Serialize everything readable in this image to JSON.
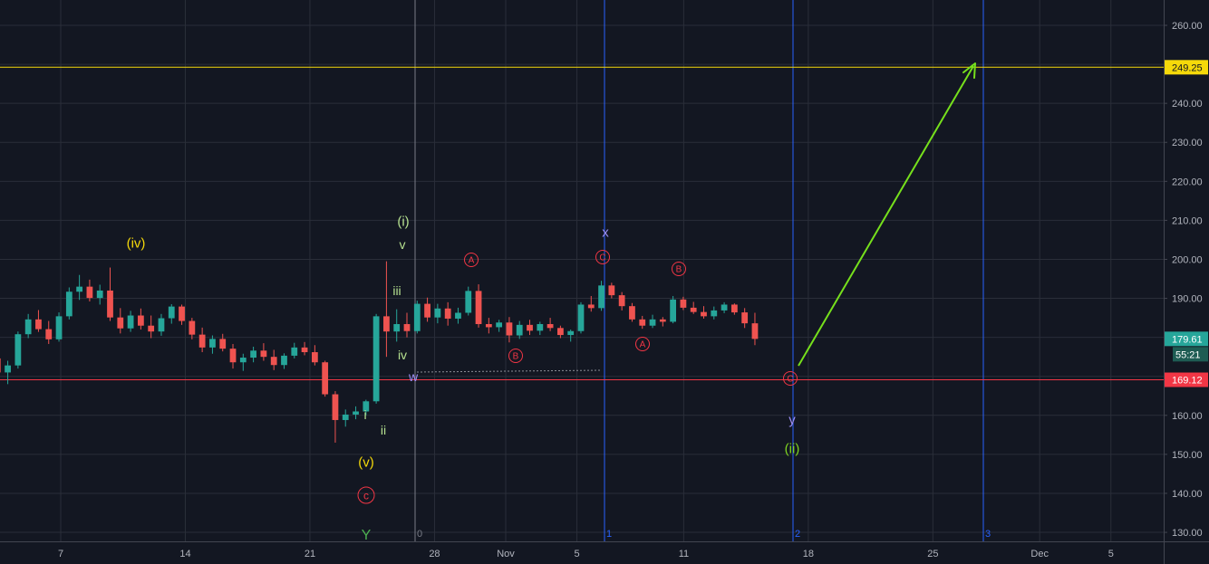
{
  "chart_data": {
    "type": "candlestick",
    "symbol_price_axis": {
      "ylim": [
        126,
        265
      ],
      "ticks": [
        "130.00",
        "140.00",
        "150.00",
        "160.00",
        "170.00",
        "180.00",
        "190.00",
        "200.00",
        "210.00",
        "220.00",
        "230.00",
        "240.00",
        "250.00",
        "260.00"
      ]
    },
    "x_axis": {
      "ticks": [
        {
          "label": "7",
          "day": 7
        },
        {
          "label": "14",
          "day": 14
        },
        {
          "label": "21",
          "day": 21
        },
        {
          "label": "28",
          "day": 28
        },
        {
          "label": "Nov",
          "day": 32
        },
        {
          "label": "5",
          "day": 36
        },
        {
          "label": "11",
          "day": 42
        },
        {
          "label": "18",
          "day": 49
        },
        {
          "label": "25",
          "day": 56
        },
        {
          "label": "Dec",
          "day": 62
        },
        {
          "label": "5",
          "day": 66
        }
      ]
    },
    "horizontal_levels": [
      {
        "label": "249.25",
        "value": 249.25,
        "color": "#f5d90a"
      },
      {
        "label": "169.12",
        "value": 169.12,
        "color": "#f23645"
      }
    ],
    "price_badges": [
      {
        "label": "179.61",
        "value": 179.61,
        "color": "#26a69a"
      }
    ],
    "countdown_label": "55:21",
    "time_cycle_labels": [
      "0",
      "1",
      "2",
      "3"
    ],
    "series": [
      {
        "ohlc_day_start": 0,
        "ohlc_day_end": 46,
        "ohlc": [
          [
            178.0,
            180.2,
            175.5,
            176.5
          ],
          [
            176.5,
            179.5,
            174.8,
            178.2
          ],
          [
            178.2,
            181.6,
            176.9,
            179.8
          ],
          [
            179.8,
            181.0,
            175.3,
            176.0
          ],
          [
            176.0,
            179.0,
            174.2,
            177.6
          ],
          [
            177.6,
            179.4,
            173.8,
            174.6
          ],
          [
            174.6,
            176.2,
            170.0,
            171.0
          ],
          [
            171.0,
            174.0,
            168.0,
            172.8
          ],
          [
            172.8,
            181.5,
            172.0,
            180.8
          ],
          [
            180.8,
            186.0,
            179.8,
            184.6
          ],
          [
            184.6,
            187.0,
            181.4,
            182.1
          ],
          [
            182.1,
            184.2,
            178.3,
            179.5
          ],
          [
            179.5,
            186.4,
            178.9,
            185.4
          ],
          [
            185.4,
            192.8,
            184.6,
            191.7
          ],
          [
            191.7,
            196.0,
            189.6,
            193.0
          ],
          [
            193.0,
            194.8,
            189.2,
            190.1
          ],
          [
            190.1,
            193.5,
            188.4,
            192.0
          ],
          [
            192.0,
            197.9,
            184.2,
            185.1
          ],
          [
            185.1,
            187.5,
            181.0,
            182.3
          ],
          [
            182.3,
            186.8,
            181.4,
            185.6
          ],
          [
            185.6,
            187.4,
            182.0,
            183.0
          ],
          [
            183.0,
            185.6,
            179.8,
            181.5
          ],
          [
            181.5,
            186.0,
            180.4,
            184.9
          ],
          [
            184.9,
            188.5,
            183.5,
            187.9
          ],
          [
            187.9,
            188.4,
            183.2,
            184.2
          ],
          [
            184.2,
            185.0,
            179.5,
            180.7
          ],
          [
            180.7,
            182.5,
            176.2,
            177.4
          ],
          [
            177.4,
            180.5,
            175.8,
            179.6
          ],
          [
            179.6,
            180.9,
            176.4,
            177.1
          ],
          [
            177.1,
            178.3,
            172.0,
            173.6
          ],
          [
            173.6,
            175.8,
            171.4,
            174.8
          ],
          [
            174.8,
            177.6,
            173.6,
            176.6
          ],
          [
            176.6,
            178.5,
            174.0,
            175.0
          ],
          [
            175.0,
            176.8,
            171.6,
            172.9
          ],
          [
            172.9,
            175.9,
            171.9,
            175.3
          ],
          [
            175.3,
            178.6,
            174.6,
            177.4
          ],
          [
            177.4,
            178.8,
            175.4,
            176.2
          ],
          [
            176.2,
            178.0,
            172.8,
            173.6
          ],
          [
            173.6,
            174.0,
            164.8,
            165.4
          ],
          [
            165.4,
            166.2,
            153.0,
            158.8
          ],
          [
            158.8,
            161.5,
            157.1,
            160.2
          ],
          [
            160.2,
            162.3,
            159.0,
            161.0
          ],
          [
            161.0,
            164.0,
            160.0,
            163.6
          ],
          [
            163.6,
            186.0,
            163.0,
            185.4
          ],
          [
            185.4,
            199.5,
            175.0,
            181.5
          ],
          [
            181.5,
            187.2,
            178.9,
            183.4
          ],
          [
            183.4,
            186.3,
            180.0,
            181.6
          ],
          [
            181.6,
            189.4,
            181.0,
            188.6
          ],
          [
            188.6,
            190.2,
            184.0,
            185.1
          ],
          [
            185.1,
            188.6,
            183.6,
            187.4
          ],
          [
            187.4,
            189.0,
            183.0,
            184.8
          ],
          [
            184.8,
            187.6,
            183.5,
            186.3
          ],
          [
            186.3,
            193.0,
            185.6,
            191.9
          ],
          [
            191.9,
            193.6,
            182.5,
            183.4
          ],
          [
            183.4,
            185.0,
            181.0,
            182.6
          ],
          [
            182.6,
            184.5,
            181.4,
            183.8
          ],
          [
            183.8,
            185.2,
            178.7,
            180.5
          ],
          [
            180.5,
            184.2,
            179.6,
            183.2
          ],
          [
            183.2,
            184.5,
            180.6,
            181.7
          ],
          [
            181.7,
            184.0,
            180.6,
            183.4
          ],
          [
            183.4,
            185.0,
            181.6,
            182.4
          ],
          [
            182.4,
            183.0,
            179.8,
            180.6
          ],
          [
            180.6,
            182.0,
            178.9,
            181.6
          ],
          [
            181.6,
            189.0,
            181.0,
            188.4
          ],
          [
            188.4,
            190.6,
            186.6,
            187.5
          ],
          [
            187.5,
            194.5,
            186.8,
            193.3
          ],
          [
            193.3,
            194.0,
            190.0,
            190.8
          ],
          [
            190.8,
            191.6,
            186.9,
            188.0
          ],
          [
            188.0,
            188.8,
            184.0,
            184.6
          ],
          [
            184.6,
            185.5,
            182.2,
            183.0
          ],
          [
            183.0,
            185.8,
            182.4,
            184.6
          ],
          [
            184.6,
            185.2,
            182.8,
            184.0
          ],
          [
            184.0,
            190.6,
            183.6,
            189.7
          ],
          [
            189.7,
            190.4,
            187.0,
            187.6
          ],
          [
            187.6,
            189.1,
            186.0,
            186.5
          ],
          [
            186.5,
            188.0,
            184.8,
            185.4
          ],
          [
            185.4,
            187.9,
            184.6,
            186.9
          ],
          [
            186.9,
            189.0,
            186.2,
            188.4
          ],
          [
            188.4,
            188.7,
            185.8,
            186.4
          ],
          [
            186.4,
            187.5,
            182.4,
            183.6
          ],
          [
            183.6,
            186.3,
            178.0,
            179.6
          ]
        ]
      }
    ]
  },
  "annotations": [
    {
      "text": "(iv)",
      "color": "#f5d90a",
      "size": 15
    },
    {
      "text": "(v)",
      "color": "#f5d90a",
      "size": 15
    },
    {
      "text": "c",
      "color": "#f23645",
      "size": 12,
      "circled": true
    },
    {
      "text": "Y",
      "color": "#4caf50",
      "size": 16
    },
    {
      "text": "i",
      "color": "#b5e08f",
      "size": 14
    },
    {
      "text": "ii",
      "color": "#b5e08f",
      "size": 14
    },
    {
      "text": "iii",
      "color": "#b5e08f",
      "size": 14
    },
    {
      "text": "iv",
      "color": "#b5e08f",
      "size": 14
    },
    {
      "text": "v",
      "color": "#b5e08f",
      "size": 14
    },
    {
      "text": "(i)",
      "color": "#b5e08f",
      "size": 15
    },
    {
      "text": "w",
      "color": "#9c8ef5",
      "size": 14
    },
    {
      "text": "A",
      "color": "#f23645",
      "size": 10,
      "circled": true
    },
    {
      "text": "B",
      "color": "#f23645",
      "size": 10,
      "circled": true
    },
    {
      "text": "C",
      "color": "#f23645",
      "size": 10,
      "circled": true
    },
    {
      "text": "x",
      "color": "#9c8ef5",
      "size": 15
    },
    {
      "text": "A",
      "color": "#f23645",
      "size": 10,
      "circled": true
    },
    {
      "text": "B",
      "color": "#f23645",
      "size": 10,
      "circled": true
    },
    {
      "text": "C",
      "color": "#f23645",
      "size": 10,
      "circled": true
    },
    {
      "text": "y",
      "color": "#9c8ef5",
      "size": 15
    },
    {
      "text": "(ii)",
      "color": "#7ed321",
      "size": 15
    }
  ],
  "colors": {
    "background": "#131722",
    "grid": "#2a2e39",
    "up": "#26a69a",
    "down": "#ef5350",
    "projection_arrow": "#76e01c",
    "time_cycle": "#2962ff"
  }
}
